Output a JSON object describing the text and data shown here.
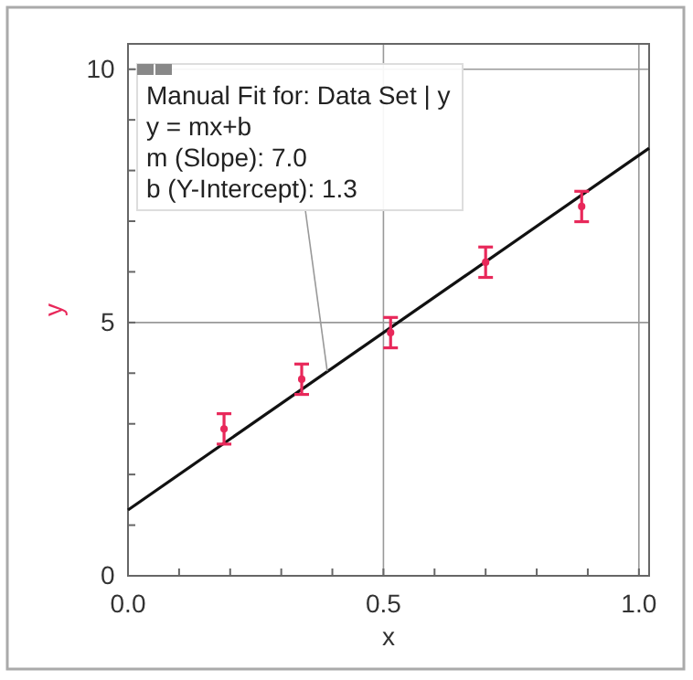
{
  "chart_data": {
    "type": "scatter",
    "xlabel": "x",
    "ylabel": "y",
    "xlim": [
      0,
      1.02
    ],
    "ylim": [
      0,
      10.5
    ],
    "xticks": [
      {
        "value": 0,
        "label": "0.0"
      },
      {
        "value": 0.1,
        "label": null
      },
      {
        "value": 0.2,
        "label": null
      },
      {
        "value": 0.3,
        "label": null
      },
      {
        "value": 0.4,
        "label": null
      },
      {
        "value": 0.5,
        "label": "0.5"
      },
      {
        "value": 0.6,
        "label": null
      },
      {
        "value": 0.7,
        "label": null
      },
      {
        "value": 0.8,
        "label": null
      },
      {
        "value": 0.9,
        "label": null
      },
      {
        "value": 1,
        "label": "1.0"
      }
    ],
    "yticks": [
      0,
      {
        "value": 1,
        "label": null
      },
      {
        "value": 2,
        "label": null
      },
      {
        "value": 3,
        "label": null
      },
      {
        "value": 4,
        "label": null
      },
      5,
      {
        "value": 6,
        "label": null
      },
      {
        "value": 7,
        "label": null
      },
      {
        "value": 8,
        "label": null
      },
      {
        "value": 9,
        "label": null
      },
      10
    ],
    "grid": true,
    "series": [
      {
        "type": "scatter",
        "color": "#e8285a",
        "x": [
          0.188,
          0.34,
          0.514,
          0.7,
          0.888
        ],
        "values": [
          2.9,
          3.88,
          4.8,
          6.19,
          7.29
        ],
        "errors": [
          0.3,
          0.3,
          0.3,
          0.3,
          0.3
        ]
      },
      {
        "type": "line",
        "color": "#111111",
        "x": [
          0,
          1.02
        ],
        "values": [
          1.3,
          8.44
        ],
        "line_style": "solid"
      }
    ],
    "annotations": [
      {
        "text": "Manual Fit for: Data Set | y\ny = mx+b\nm (Slope): 7.0\nb (Y-Intercept): 1.3",
        "x": 0.39,
        "y": 4.04
      }
    ]
  }
}
